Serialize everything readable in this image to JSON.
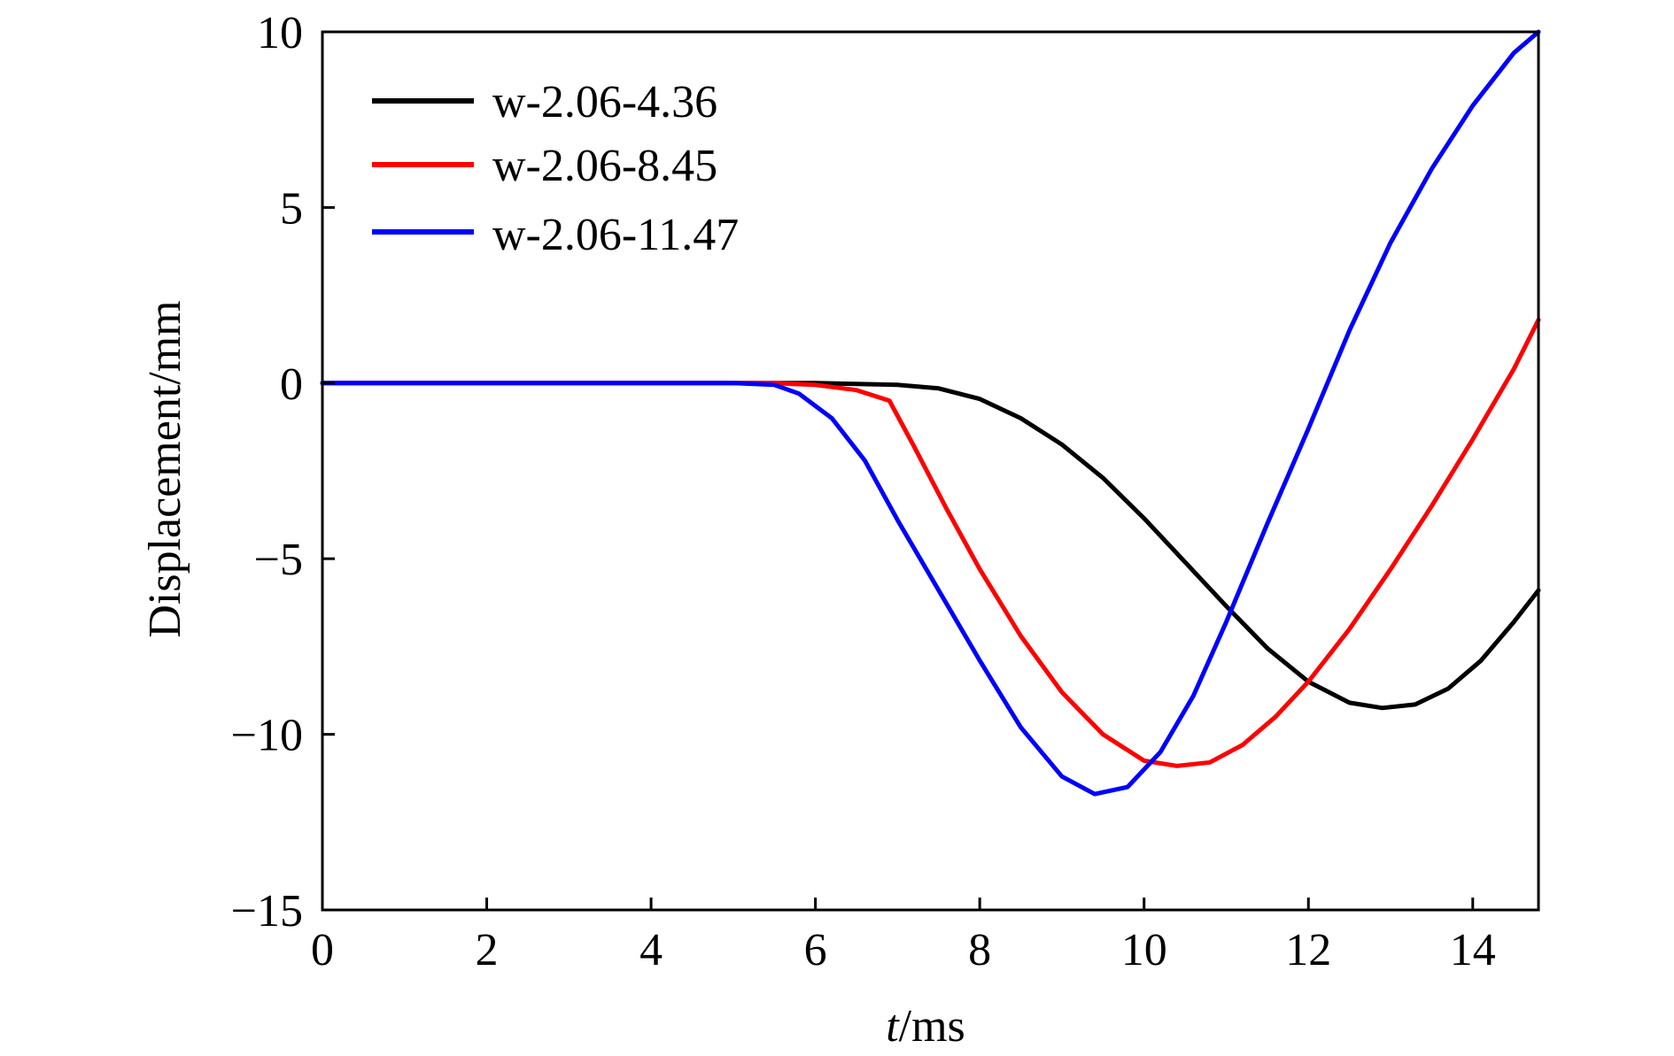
{
  "chart_data": {
    "type": "line",
    "title": "",
    "xlabel_italic": "t",
    "xlabel_rest": "/ms",
    "ylabel": "Displacement/mm",
    "xlim": [
      0,
      14.8
    ],
    "ylim": [
      -15,
      10
    ],
    "x_ticks": [
      0,
      2,
      4,
      6,
      8,
      10,
      12,
      14
    ],
    "y_ticks": [
      10,
      5,
      0,
      -5,
      -10,
      -15
    ],
    "x_tick_labels": [
      "0",
      "2",
      "4",
      "6",
      "8",
      "10",
      "12",
      "14"
    ],
    "y_tick_labels": [
      "10",
      "5",
      "0",
      "−5",
      "−10",
      "−15"
    ],
    "grid": false,
    "legend_position": "top-left",
    "series": [
      {
        "name": "w-2.06-4.36",
        "color": "#000000",
        "x": [
          0,
          6.0,
          7.0,
          7.5,
          8.0,
          8.5,
          9.0,
          9.5,
          10.0,
          10.5,
          11.0,
          11.5,
          12.0,
          12.5,
          12.9,
          13.3,
          13.7,
          14.1,
          14.5,
          14.8
        ],
        "y": [
          0,
          0,
          -0.05,
          -0.15,
          -0.45,
          -1.0,
          -1.75,
          -2.7,
          -3.85,
          -5.1,
          -6.35,
          -7.55,
          -8.5,
          -9.1,
          -9.25,
          -9.15,
          -8.7,
          -7.9,
          -6.8,
          -5.9
        ]
      },
      {
        "name": "w-2.06-8.45",
        "color": "#ff0000",
        "x": [
          0,
          5.5,
          6.0,
          6.5,
          6.9,
          7.2,
          7.6,
          8.0,
          8.5,
          9.0,
          9.5,
          10.0,
          10.4,
          10.8,
          11.2,
          11.6,
          12.0,
          12.5,
          13.0,
          13.5,
          14.0,
          14.5,
          14.8
        ],
        "y": [
          0,
          0,
          -0.05,
          -0.2,
          -0.5,
          -1.8,
          -3.6,
          -5.3,
          -7.2,
          -8.8,
          -10.0,
          -10.75,
          -10.9,
          -10.8,
          -10.3,
          -9.5,
          -8.5,
          -7.0,
          -5.3,
          -3.5,
          -1.6,
          0.4,
          1.8
        ]
      },
      {
        "name": "w-2.06-11.47",
        "color": "#0000ff",
        "x": [
          0,
          5.0,
          5.5,
          5.8,
          6.2,
          6.6,
          7.0,
          7.5,
          8.0,
          8.5,
          9.0,
          9.4,
          9.8,
          10.2,
          10.6,
          11.0,
          11.5,
          12.0,
          12.5,
          13.0,
          13.5,
          14.0,
          14.5,
          14.8
        ],
        "y": [
          0,
          0,
          -0.05,
          -0.3,
          -1.0,
          -2.2,
          -3.9,
          -5.9,
          -7.9,
          -9.8,
          -11.2,
          -11.7,
          -11.5,
          -10.5,
          -8.9,
          -6.8,
          -4.0,
          -1.3,
          1.5,
          4.0,
          6.1,
          7.9,
          9.4,
          10.0
        ]
      }
    ]
  }
}
